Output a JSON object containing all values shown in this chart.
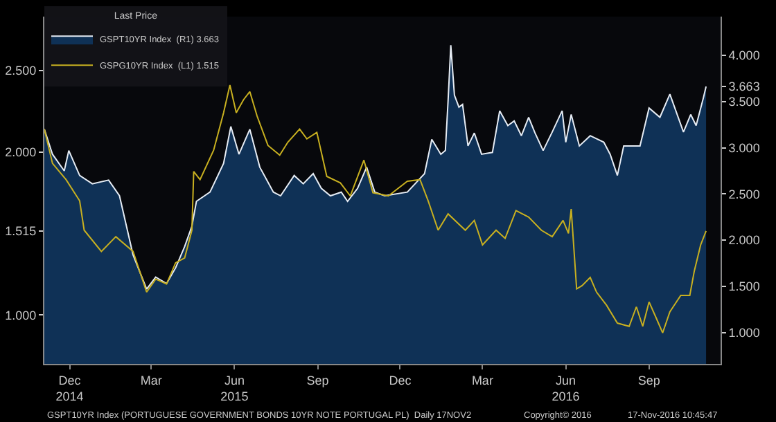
{
  "chart_data": {
    "type": "line",
    "legend_title": "Last Price",
    "legend": "top left",
    "grid": false,
    "xlim": [
      "2014-11-17",
      "2016-12-03"
    ],
    "xticks": [
      {
        "value": "2014-12-15",
        "label": "Dec\n2014"
      },
      {
        "value": "2015-03-15",
        "label": "Mar"
      },
      {
        "value": "2015-06-15",
        "label": "Jun\n2015"
      },
      {
        "value": "2015-09-15",
        "label": "Sep"
      },
      {
        "value": "2015-12-15",
        "label": "Dec"
      },
      {
        "value": "2016-03-15",
        "label": "Mar"
      },
      {
        "value": "2016-06-15",
        "label": "Jun\n2016"
      },
      {
        "value": "2016-09-15",
        "label": "Sep"
      }
    ],
    "ylim": [
      0.7,
      2.83
    ],
    "yticks": [
      {
        "value": 1.0,
        "label": "1.000"
      },
      {
        "value": 1.515,
        "label": "1.515"
      },
      {
        "value": 2.0,
        "label": "2.000"
      },
      {
        "value": 2.5,
        "label": "2.500"
      }
    ],
    "y2lim": [
      0.66,
      4.42
    ],
    "y2ticks": [
      {
        "value": 1.0,
        "label": "1.000"
      },
      {
        "value": 1.5,
        "label": "1.500"
      },
      {
        "value": 2.0,
        "label": "2.000"
      },
      {
        "value": 2.5,
        "label": "2.500"
      },
      {
        "value": 3.0,
        "label": "3.000"
      },
      {
        "value": 3.5,
        "label": "3.500"
      },
      {
        "value": 3.663,
        "label": "3.663"
      },
      {
        "value": 4.0,
        "label": "4.000"
      }
    ],
    "series": [
      {
        "name": "GSPT10YR Index  (R1) 3.663",
        "type": "area",
        "axis": "y2",
        "color": "#e6ecf4",
        "x": [
          "2014-11-17",
          "2014-11-26",
          "2014-12-09",
          "2014-12-14",
          "2014-12-26",
          "2015-01-09",
          "2015-01-27",
          "2015-02-08",
          "2015-02-23",
          "2015-03-10",
          "2015-03-20",
          "2015-04-01",
          "2015-04-11",
          "2015-04-21",
          "2015-04-29",
          "2015-05-04",
          "2015-05-19",
          "2015-06-03",
          "2015-06-11",
          "2015-06-20",
          "2015-07-02",
          "2015-07-13",
          "2015-07-28",
          "2015-08-05",
          "2015-08-20",
          "2015-08-30",
          "2015-09-10",
          "2015-09-19",
          "2015-09-29",
          "2015-10-11",
          "2015-10-18",
          "2015-10-29",
          "2015-11-08",
          "2015-11-17",
          "2015-11-28",
          "2015-12-23",
          "2016-01-11",
          "2016-01-19",
          "2016-01-29",
          "2016-02-03",
          "2016-02-06",
          "2016-02-09",
          "2016-02-13",
          "2016-02-18",
          "2016-02-22",
          "2016-02-28",
          "2016-03-06",
          "2016-03-14",
          "2016-03-26",
          "2016-04-03",
          "2016-04-12",
          "2016-04-19",
          "2016-04-27",
          "2016-05-05",
          "2016-05-12",
          "2016-05-21",
          "2016-05-31",
          "2016-06-11",
          "2016-06-15",
          "2016-06-21",
          "2016-06-30",
          "2016-07-12",
          "2016-07-27",
          "2016-08-03",
          "2016-08-11",
          "2016-08-18",
          "2016-09-05",
          "2016-09-15",
          "2016-09-27",
          "2016-10-08",
          "2016-10-23",
          "2016-10-31",
          "2016-11-06",
          "2016-11-14",
          "2016-11-17"
        ],
        "values": [
          3.2,
          2.93,
          2.75,
          2.97,
          2.7,
          2.61,
          2.65,
          2.48,
          1.84,
          1.47,
          1.6,
          1.53,
          1.7,
          1.93,
          2.15,
          2.42,
          2.52,
          2.83,
          3.23,
          2.93,
          3.2,
          2.79,
          2.52,
          2.48,
          2.7,
          2.61,
          2.72,
          2.56,
          2.48,
          2.52,
          2.42,
          2.56,
          2.79,
          2.52,
          2.48,
          2.52,
          2.72,
          3.09,
          2.93,
          2.97,
          3.51,
          4.11,
          3.57,
          3.44,
          3.47,
          3.02,
          3.16,
          2.93,
          2.95,
          3.4,
          3.24,
          3.29,
          3.13,
          3.33,
          3.16,
          2.97,
          3.17,
          3.4,
          3.06,
          3.36,
          3.02,
          3.13,
          3.06,
          2.93,
          2.7,
          3.02,
          3.02,
          3.43,
          3.33,
          3.58,
          3.17,
          3.36,
          3.24,
          3.54,
          3.663
        ]
      },
      {
        "name": "GSPG10YR Index  (L1) 1.515",
        "color": "#c8b020",
        "x": [
          "2014-11-17",
          "2014-11-26",
          "2014-12-11",
          "2014-12-26",
          "2014-12-31",
          "2015-01-19",
          "2015-02-04",
          "2015-02-23",
          "2015-03-10",
          "2015-03-20",
          "2015-04-01",
          "2015-04-11",
          "2015-04-21",
          "2015-04-29",
          "2015-05-01",
          "2015-05-08",
          "2015-05-23",
          "2015-06-03",
          "2015-06-10",
          "2015-06-17",
          "2015-06-25",
          "2015-07-02",
          "2015-07-10",
          "2015-07-22",
          "2015-08-04",
          "2015-08-13",
          "2015-08-26",
          "2015-09-03",
          "2015-09-14",
          "2015-09-25",
          "2015-10-10",
          "2015-10-21",
          "2015-11-05",
          "2015-11-15",
          "2015-12-02",
          "2015-12-23",
          "2016-01-06",
          "2016-01-15",
          "2016-01-26",
          "2016-02-06",
          "2016-02-25",
          "2016-03-06",
          "2016-03-15",
          "2016-03-30",
          "2016-04-09",
          "2016-04-21",
          "2016-05-05",
          "2016-05-19",
          "2016-05-31",
          "2016-06-12",
          "2016-06-18",
          "2016-06-21",
          "2016-06-27",
          "2016-07-03",
          "2016-07-12",
          "2016-07-19",
          "2016-07-30",
          "2016-08-11",
          "2016-08-24",
          "2016-09-01",
          "2016-09-08",
          "2016-09-15",
          "2016-09-23",
          "2016-09-30",
          "2016-10-08",
          "2016-10-20",
          "2016-10-30",
          "2016-11-04",
          "2016-11-11",
          "2016-11-17"
        ],
        "values": [
          2.14,
          1.93,
          1.83,
          1.7,
          1.52,
          1.39,
          1.48,
          1.39,
          1.14,
          1.22,
          1.19,
          1.32,
          1.35,
          1.52,
          1.88,
          1.83,
          2.01,
          2.24,
          2.41,
          2.24,
          2.32,
          2.37,
          2.22,
          2.04,
          1.98,
          2.06,
          2.14,
          2.08,
          2.12,
          1.85,
          1.81,
          1.73,
          1.95,
          1.75,
          1.73,
          1.82,
          1.83,
          1.7,
          1.52,
          1.62,
          1.52,
          1.58,
          1.43,
          1.52,
          1.47,
          1.64,
          1.6,
          1.52,
          1.48,
          1.58,
          1.5,
          1.65,
          1.16,
          1.18,
          1.23,
          1.14,
          1.06,
          0.95,
          0.93,
          1.05,
          0.93,
          1.08,
          0.98,
          0.89,
          1.02,
          1.12,
          1.12,
          1.27,
          1.43,
          1.515
        ]
      }
    ],
    "annotations": [
      "GSPT10YR Index (PORTUGUESE GOVERNMENT BONDS 10YR NOTE PORTUGAL PL)  Daily 17NOV2",
      "Copyright© 2016",
      "17-Nov-2016 10:45:47"
    ]
  }
}
